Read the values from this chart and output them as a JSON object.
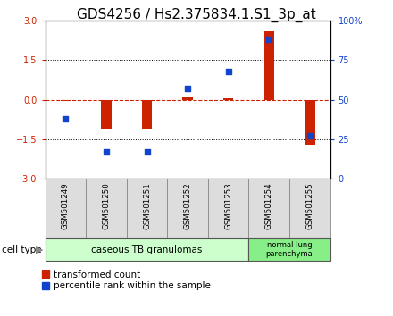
{
  "title": "GDS4256 / Hs2.375834.1.S1_3p_at",
  "samples": [
    "GSM501249",
    "GSM501250",
    "GSM501251",
    "GSM501252",
    "GSM501253",
    "GSM501254",
    "GSM501255"
  ],
  "red_bars": [
    -0.05,
    -1.1,
    -1.1,
    0.1,
    0.05,
    2.6,
    -1.7
  ],
  "blue_dots_pct": [
    38,
    17,
    17,
    57,
    68,
    88,
    27
  ],
  "ylim_left": [
    -3,
    3
  ],
  "ylim_right": [
    0,
    100
  ],
  "yticks_left": [
    -3,
    -1.5,
    0,
    1.5,
    3
  ],
  "yticks_right": [
    0,
    25,
    50,
    75,
    100
  ],
  "group1_label": "caseous TB granulomas",
  "group2_label": "normal lung\nparenchyma",
  "group1_count": 5,
  "group2_count": 2,
  "cell_type_label": "cell type",
  "red_legend": "transformed count",
  "blue_legend": "percentile rank within the sample",
  "bar_color": "#cc2200",
  "dot_color": "#1144cc",
  "group1_bg": "#ccffcc",
  "group2_bg": "#88ee88",
  "sample_box_bg": "#dddddd",
  "title_fontsize": 11,
  "tick_fontsize": 7,
  "legend_fontsize": 7.5,
  "bar_width": 0.25
}
